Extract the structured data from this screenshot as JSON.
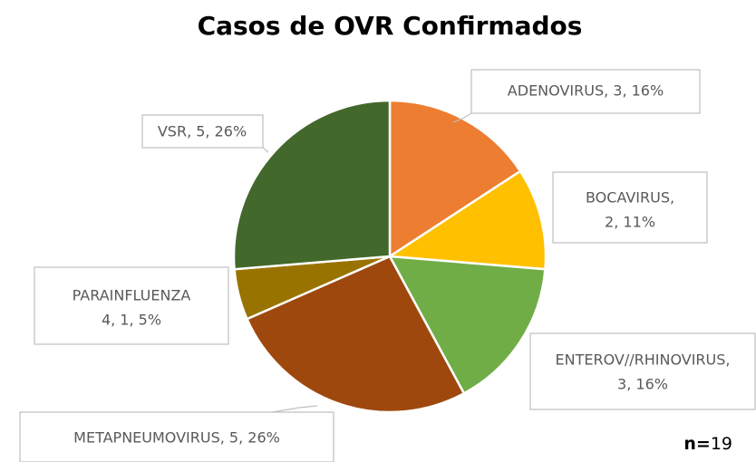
{
  "chart_data": {
    "type": "pie",
    "title": "Casos de OVR Confirmados",
    "values": [
      3,
      2,
      3,
      5,
      1,
      5
    ],
    "value_labels": [
      [
        "ADENOVIRUS, 3, 16%"
      ],
      [
        "BOCAVIRUS,",
        "2, 11%"
      ],
      [
        "ENTEROV//RHINOVIRUS,",
        "3, 16%"
      ],
      [
        "METAPNEUMOVIRUS, 5, 26%"
      ],
      [
        "PARAINFLUENZA",
        "4, 1, 5%"
      ],
      [
        "VSR, 5, 26%"
      ]
    ],
    "colors": [
      "#ED7D31",
      "#FFC000",
      "#70AD47",
      "#9E480E",
      "#997300",
      "#43682B"
    ],
    "annotation": "n=",
    "total": 19
  }
}
